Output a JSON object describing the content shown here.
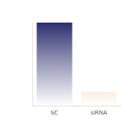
{
  "chart_data": {
    "type": "bar",
    "categories": [
      "SC",
      "siRNA"
    ],
    "values": [
      100,
      17
    ],
    "colors": [
      "#2b2e6e",
      "#e8964a"
    ],
    "ylim": [
      0,
      100
    ],
    "grid": false,
    "tick_labels": "x"
  }
}
